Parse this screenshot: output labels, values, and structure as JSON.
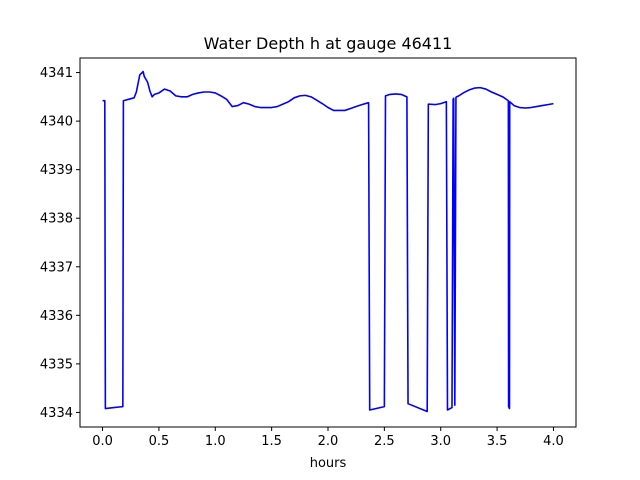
{
  "chart_data": {
    "type": "line",
    "title": "Water Depth h at gauge 46411",
    "xlabel": "hours",
    "ylabel": "",
    "xlim": [
      -0.2,
      4.2
    ],
    "ylim": [
      4333.7,
      4341.3
    ],
    "x_ticks": [
      0.0,
      0.5,
      1.0,
      1.5,
      2.0,
      2.5,
      3.0,
      3.5,
      4.0
    ],
    "x_tick_labels": [
      "0.0",
      "0.5",
      "1.0",
      "1.5",
      "2.0",
      "2.5",
      "3.0",
      "3.5",
      "4.0"
    ],
    "y_ticks": [
      4334,
      4335,
      4336,
      4337,
      4338,
      4339,
      4340,
      4341
    ],
    "y_tick_labels": [
      "4334",
      "4335",
      "4336",
      "4337",
      "4338",
      "4339",
      "4340",
      "4341"
    ],
    "grid": false,
    "line_color": "#0000ff",
    "series": [
      {
        "x": [
          0.0,
          0.02,
          0.025,
          0.1,
          0.18,
          0.185,
          0.28,
          0.3,
          0.33,
          0.36,
          0.37,
          0.4,
          0.42,
          0.44,
          0.46,
          0.5,
          0.55,
          0.6,
          0.65,
          0.7,
          0.75,
          0.8,
          0.85,
          0.9,
          0.95,
          1.0,
          1.05,
          1.1,
          1.15,
          1.2,
          1.25,
          1.3,
          1.35,
          1.4,
          1.45,
          1.5,
          1.55,
          1.6,
          1.65,
          1.7,
          1.75,
          1.8,
          1.85,
          1.9,
          1.95,
          2.0,
          2.05,
          2.1,
          2.15,
          2.2,
          2.25,
          2.3,
          2.36,
          2.37,
          2.5,
          2.51,
          2.55,
          2.6,
          2.65,
          2.7,
          2.71,
          2.88,
          2.89,
          2.95,
          3.0,
          3.05,
          3.06,
          3.1,
          3.11,
          3.115,
          3.125,
          3.135,
          3.14,
          3.16,
          3.2,
          3.25,
          3.3,
          3.35,
          3.4,
          3.45,
          3.5,
          3.55,
          3.6,
          3.602,
          3.61,
          3.612,
          3.65,
          3.7,
          3.75,
          3.8,
          3.85,
          3.9,
          3.95,
          4.0
        ],
        "y": [
          4340.42,
          4340.42,
          4334.08,
          4334.1,
          4334.12,
          4340.42,
          4340.48,
          4340.6,
          4340.95,
          4341.02,
          4340.92,
          4340.8,
          4340.62,
          4340.5,
          4340.55,
          4340.58,
          4340.66,
          4340.62,
          4340.52,
          4340.5,
          4340.5,
          4340.55,
          4340.58,
          4340.6,
          4340.6,
          4340.58,
          4340.52,
          4340.45,
          4340.3,
          4340.32,
          4340.38,
          4340.35,
          4340.3,
          4340.28,
          4340.28,
          4340.28,
          4340.3,
          4340.35,
          4340.4,
          4340.48,
          4340.52,
          4340.53,
          4340.5,
          4340.43,
          4340.36,
          4340.28,
          4340.22,
          4340.22,
          4340.22,
          4340.26,
          4340.3,
          4340.34,
          4340.38,
          4334.05,
          4334.12,
          4340.52,
          4340.55,
          4340.56,
          4340.55,
          4340.5,
          4334.18,
          4334.02,
          4340.35,
          4340.34,
          4340.36,
          4340.4,
          4334.05,
          4334.1,
          4340.45,
          4340.47,
          4334.15,
          4340.49,
          4340.5,
          4340.52,
          4340.58,
          4340.64,
          4340.68,
          4340.69,
          4340.66,
          4340.6,
          4340.55,
          4340.5,
          4340.42,
          4334.12,
          4334.08,
          4340.4,
          4340.32,
          4340.28,
          4340.27,
          4340.28,
          4340.3,
          4340.32,
          4340.34,
          4340.36
        ]
      }
    ]
  }
}
